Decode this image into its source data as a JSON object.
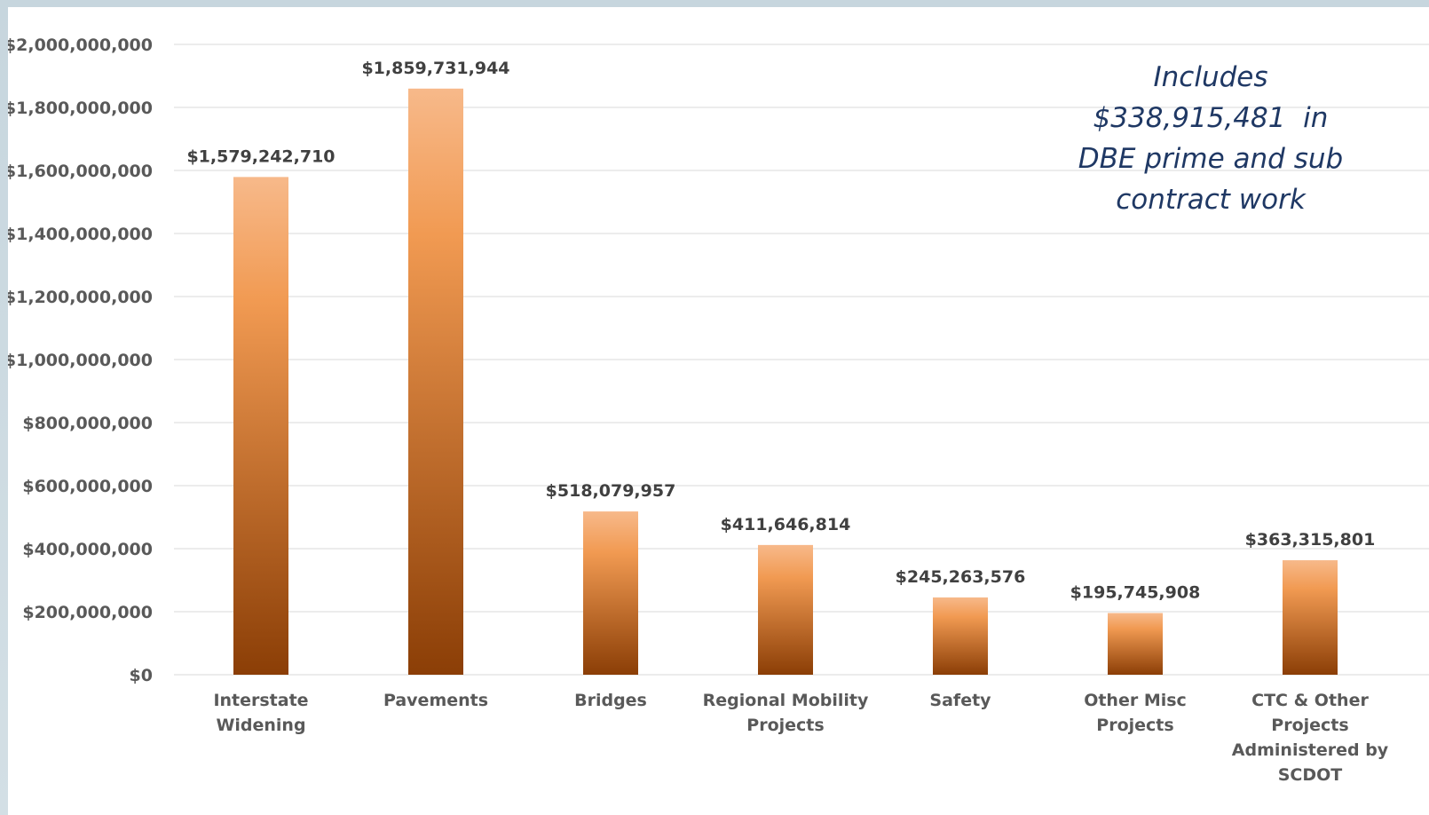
{
  "chart_data": {
    "type": "bar",
    "categories": [
      [
        "Interstate",
        "Widening"
      ],
      [
        "Pavements"
      ],
      [
        "Bridges"
      ],
      [
        "Regional Mobility",
        "Projects"
      ],
      [
        "Safety"
      ],
      [
        "Other Misc",
        "Projects"
      ],
      [
        "CTC & Other",
        "Projects",
        "Administered by",
        "SCDOT"
      ]
    ],
    "values": [
      1579242710,
      1859731944,
      518079957,
      411646814,
      245263576,
      195745908,
      363315801
    ],
    "data_labels": [
      "$1,579,242,710",
      "$1,859,731,944",
      "$518,079,957",
      "$411,646,814",
      "$245,263,576",
      "$195,745,908",
      "$363,315,801"
    ],
    "y_ticks": [
      0,
      200000000,
      400000000,
      600000000,
      800000000,
      1000000000,
      1200000000,
      1400000000,
      1600000000,
      1800000000,
      2000000000
    ],
    "y_tick_labels": [
      "$0",
      "$200,000,000",
      "$400,000,000",
      "$600,000,000",
      "$800,000,000",
      "$1,000,000,000",
      "$1,200,000,000",
      "$1,400,000,000",
      "$1,600,000,000",
      "$1,800,000,000",
      "$2,000,000,000"
    ],
    "ylim": [
      0,
      2000000000
    ],
    "grid": true,
    "legend": "none",
    "title": "",
    "xlabel": "",
    "ylabel": "",
    "colors": {
      "bar_top": "#f7b98a",
      "bar_mid": "#f19a52",
      "bar_bottom": "#8b3e06",
      "grid": "#d9d9d9",
      "axis_text": "#595959",
      "data_label": "#404040"
    }
  },
  "annotation": {
    "lines": [
      "Includes",
      "$338,915,481  in",
      "DBE prime and sub",
      "contract work"
    ],
    "color": "#1f3864"
  }
}
